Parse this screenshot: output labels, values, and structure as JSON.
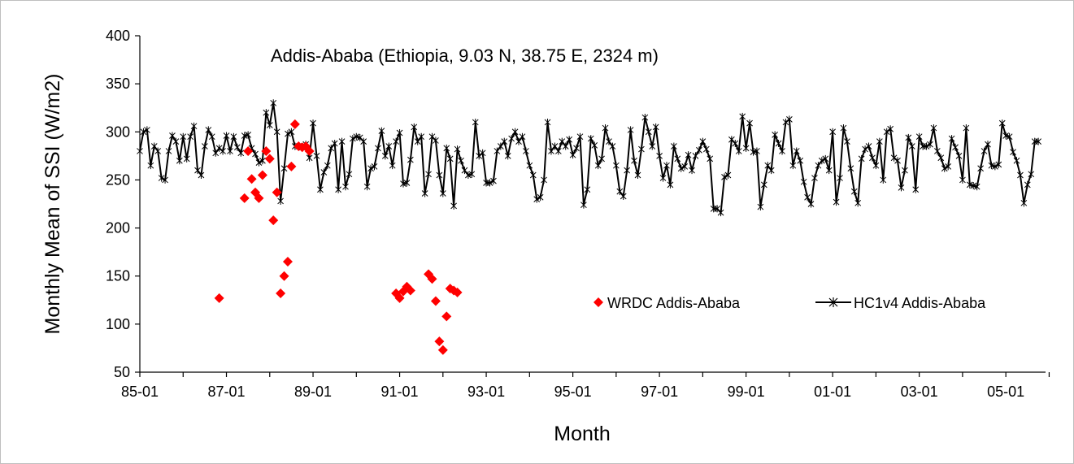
{
  "chart_data": {
    "type": "scatter",
    "title": "Addis-Ababa (Ethiopia, 9.03 N, 38.75 E, 2324 m)",
    "xlabel": "Month",
    "ylabel": "Monthly Mean of SSI (W/m2)",
    "ylim": [
      50,
      400
    ],
    "yticks": [
      50,
      100,
      150,
      200,
      250,
      300,
      350,
      400
    ],
    "xlim": [
      "1985-01",
      "2005-12"
    ],
    "xtick_labels": [
      "85-01",
      "87-01",
      "89-01",
      "91-01",
      "93-01",
      "95-01",
      "97-01",
      "99-01",
      "01-01",
      "03-01",
      "05-01"
    ],
    "grid": false,
    "legend_position": "center-right",
    "series": [
      {
        "name": "WRDC Addis-Ababa",
        "color": "#ff0000",
        "marker": "diamond",
        "x": [
          "1986-11",
          "1987-06",
          "1987-07",
          "1987-08",
          "1987-09",
          "1987-10",
          "1987-11",
          "1987-12",
          "1988-01",
          "1988-02",
          "1988-03",
          "1988-04",
          "1988-05",
          "1988-06",
          "1988-07",
          "1988-08",
          "1988-09",
          "1988-10",
          "1988-11",
          "1988-12",
          "1990-12",
          "1991-01",
          "1991-02",
          "1991-03",
          "1991-04",
          "1991-09",
          "1991-10",
          "1991-11",
          "1991-12",
          "1992-01",
          "1992-02",
          "1992-03",
          "1992-04",
          "1992-05"
        ],
        "y": [
          127,
          231,
          280,
          251,
          237,
          231,
          255,
          280,
          272,
          208,
          237,
          132,
          150,
          165,
          264,
          308,
          285,
          284,
          285,
          280,
          132,
          127,
          134,
          139,
          135,
          152,
          147,
          124,
          82,
          73,
          108,
          137,
          135,
          133
        ]
      },
      {
        "name": "HC1v4 Addis-Ababa",
        "color": "#000000",
        "marker": "asterisk-line",
        "x_start": "1985-01",
        "x_step": "1 month",
        "y": [
          280,
          300,
          302,
          265,
          285,
          280,
          252,
          250,
          280,
          296,
          290,
          270,
          295,
          272,
          295,
          306,
          260,
          255,
          285,
          302,
          295,
          278,
          283,
          280,
          296,
          280,
          295,
          284,
          278,
          296,
          297,
          283,
          277,
          268,
          270,
          320,
          307,
          330,
          300,
          228,
          262,
          298,
          300,
          285,
          285,
          284,
          287,
          273,
          309,
          275,
          240,
          258,
          265,
          283,
          288,
          240,
          290,
          243,
          256,
          293,
          295,
          294,
          290,
          243,
          262,
          264,
          283,
          301,
          275,
          285,
          265,
          290,
          299,
          246,
          247,
          271,
          305,
          290,
          295,
          236,
          256,
          295,
          291,
          255,
          236,
          283,
          272,
          223,
          282,
          270,
          260,
          255,
          256,
          310,
          275,
          278,
          247,
          247,
          249,
          280,
          285,
          290,
          275,
          293,
          300,
          290,
          295,
          280,
          265,
          255,
          230,
          232,
          250,
          310,
          280,
          285,
          280,
          290,
          285,
          292,
          276,
          283,
          295,
          224,
          240,
          293,
          286,
          265,
          272,
          304,
          290,
          285,
          265,
          238,
          233,
          260,
          302,
          270,
          255,
          282,
          315,
          300,
          285,
          305,
          275,
          252,
          265,
          245,
          285,
          272,
          262,
          264,
          276,
          260,
          275,
          281,
          290,
          282,
          272,
          220,
          220,
          216,
          253,
          255,
          292,
          288,
          280,
          316,
          283,
          309,
          279,
          280,
          222,
          245,
          265,
          260,
          297,
          288,
          280,
          310,
          313,
          265,
          280,
          270,
          248,
          232,
          225,
          252,
          265,
          270,
          272,
          260,
          300,
          227,
          252,
          304,
          290,
          262,
          238,
          226,
          272,
          282,
          285,
          273,
          265,
          290,
          250,
          300,
          303,
          273,
          270,
          242,
          260,
          294,
          285,
          240,
          295,
          285,
          285,
          287,
          304,
          280,
          273,
          262,
          264,
          293,
          284,
          275,
          250,
          304,
          245,
          244,
          243,
          262,
          280,
          287,
          265,
          264,
          266,
          309,
          296,
          295,
          279,
          270,
          255,
          226,
          245,
          256,
          290,
          290
        ]
      }
    ]
  }
}
